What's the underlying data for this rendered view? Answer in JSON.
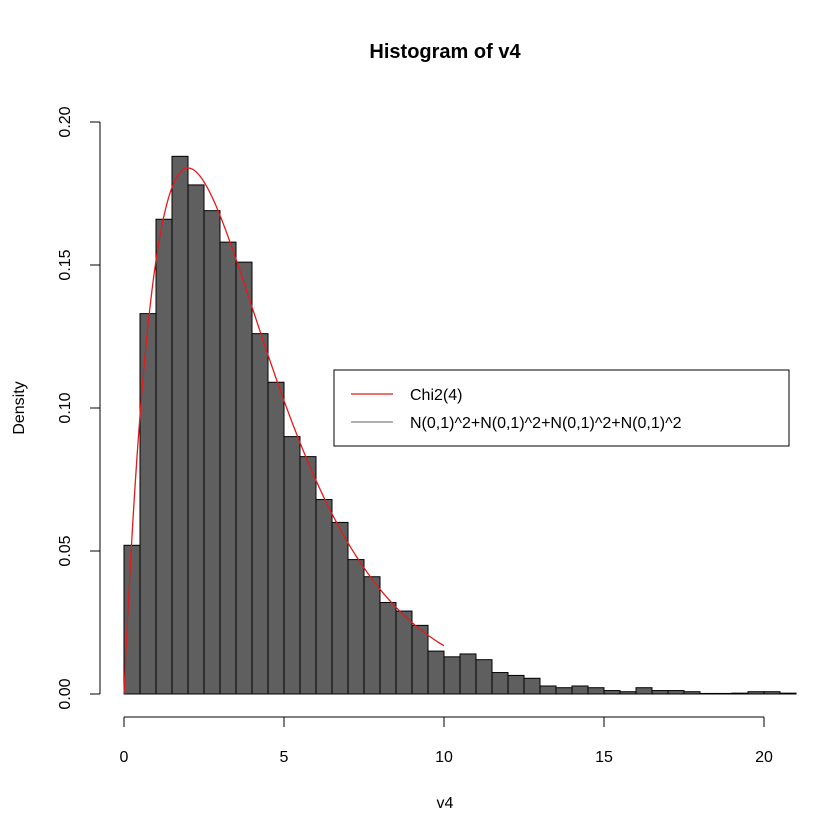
{
  "chart_data": {
    "type": "bar",
    "title": "Histogram of v4",
    "xlabel": "v4",
    "ylabel": "Density",
    "xlim": [
      0,
      20.8
    ],
    "ylim": [
      0,
      0.2
    ],
    "x_ticks": [
      0,
      5,
      10,
      15,
      20
    ],
    "y_ticks": [
      0.0,
      0.05,
      0.1,
      0.15,
      0.2
    ],
    "bin_width": 0.5,
    "bin_start": 0,
    "bar_color": "#5f5f5f",
    "curve_color": "#e41a1c",
    "grid": false,
    "legend_position": "right",
    "densities": [
      0.052,
      0.133,
      0.166,
      0.188,
      0.178,
      0.169,
      0.158,
      0.151,
      0.126,
      0.109,
      0.09,
      0.083,
      0.068,
      0.06,
      0.047,
      0.041,
      0.032,
      0.029,
      0.024,
      0.015,
      0.013,
      0.014,
      0.012,
      0.0075,
      0.0065,
      0.0055,
      0.0028,
      0.0022,
      0.0028,
      0.0022,
      0.0012,
      0.0008,
      0.0022,
      0.0012,
      0.0012,
      0.0008,
      0.0002,
      0.0002,
      0.0003,
      0.0008,
      0.0008,
      0.0003
    ],
    "series": [
      {
        "name": "Chi2(4)",
        "color": "#e41a1c",
        "curve": "dchisq",
        "df": 4,
        "x_range": [
          0,
          10
        ]
      },
      {
        "name": "N(0,1)^2+N(0,1)^2+N(0,1)^2+N(0,1)^2",
        "color": "#808080"
      }
    ]
  }
}
